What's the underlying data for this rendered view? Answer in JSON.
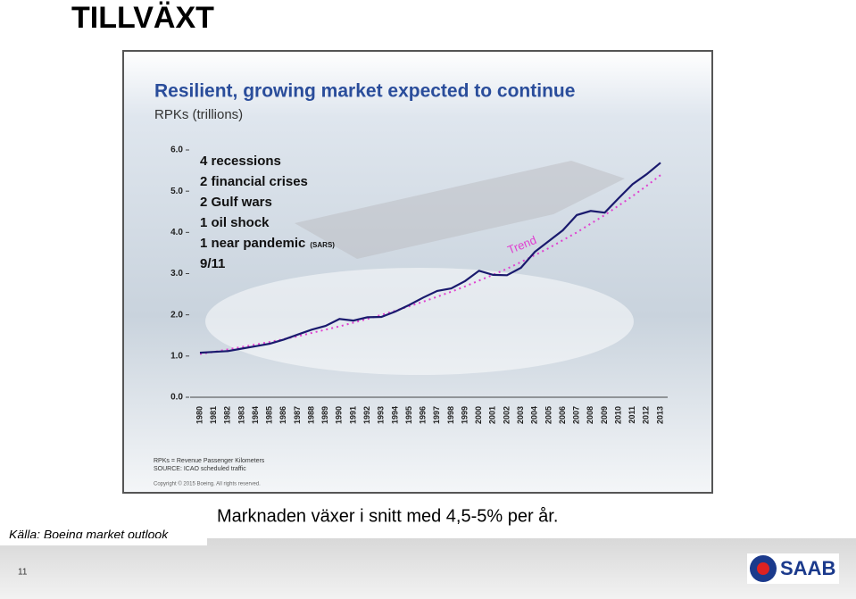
{
  "slide": {
    "heading": "TILLVÄXT",
    "source": "Källa: Boeing market outlook",
    "caption": "Marknaden växer i snitt med 4,5-5% per år.",
    "page_number": "11",
    "logo": "SAAB"
  },
  "chart_data": {
    "type": "line",
    "title": "Resilient, growing market expected to continue",
    "subtitle": "RPKs (trillions)",
    "categories": [
      "1980",
      "1981",
      "1982",
      "1983",
      "1984",
      "1985",
      "1986",
      "1987",
      "1988",
      "1989",
      "1990",
      "1991",
      "1992",
      "1993",
      "1994",
      "1995",
      "1996",
      "1997",
      "1998",
      "1999",
      "2000",
      "2001",
      "2002",
      "2003",
      "2004",
      "2005",
      "2006",
      "2007",
      "2008",
      "2009",
      "2010",
      "2011",
      "2012",
      "2013"
    ],
    "values": [
      1.08,
      1.1,
      1.12,
      1.18,
      1.24,
      1.3,
      1.4,
      1.52,
      1.64,
      1.73,
      1.9,
      1.86,
      1.94,
      1.95,
      2.08,
      2.24,
      2.42,
      2.58,
      2.64,
      2.82,
      3.07,
      2.97,
      2.96,
      3.14,
      3.53,
      3.79,
      4.05,
      4.42,
      4.52,
      4.48,
      4.83,
      5.17,
      5.41,
      5.69
    ],
    "color": "#1a1a6e",
    "trend": {
      "label": "Trend",
      "color": "#e040d0",
      "values": [
        1.05,
        1.1,
        1.16,
        1.22,
        1.28,
        1.34,
        1.41,
        1.48,
        1.56,
        1.64,
        1.72,
        1.81,
        1.9,
        2.0,
        2.1,
        2.21,
        2.32,
        2.44,
        2.56,
        2.69,
        2.83,
        2.97,
        3.12,
        3.28,
        3.45,
        3.62,
        3.81,
        4.0,
        4.21,
        4.42,
        4.65,
        4.88,
        5.13,
        5.39
      ]
    },
    "ylim": [
      0,
      6
    ],
    "yticks": [
      {
        "value": 0,
        "label": "0.0"
      },
      {
        "value": 1,
        "label": "1.0"
      },
      {
        "value": 2,
        "label": "2.0"
      },
      {
        "value": 3,
        "label": "3.0"
      },
      {
        "value": 4,
        "label": "4.0"
      },
      {
        "value": 5,
        "label": "5.0"
      },
      {
        "value": 6,
        "label": "6.0"
      }
    ],
    "annotations": [
      "4 recessions",
      "2 financial crises",
      "2 Gulf wars",
      "1 oil shock",
      "1 near pandemic",
      "9/11"
    ],
    "annotation_note": "(SARS)",
    "footnotes": [
      "RPKs = Revenue Passenger Kilometers",
      "SOURCE: ICAO scheduled traffic"
    ],
    "copyright": "Copyright © 2015 Boeing. All rights reserved."
  }
}
